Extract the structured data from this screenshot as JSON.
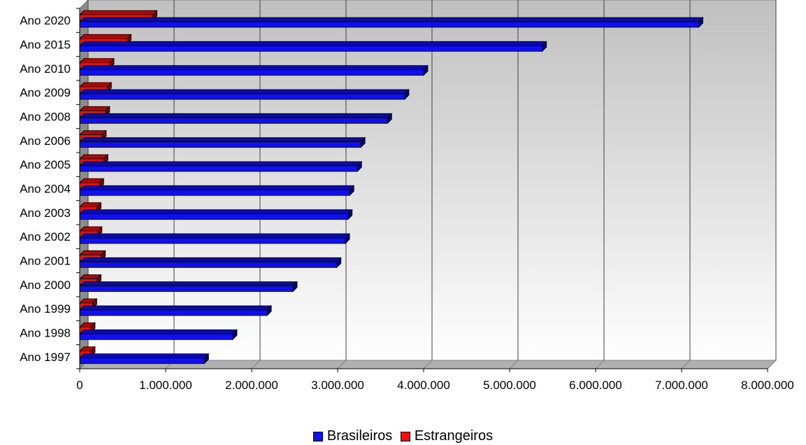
{
  "chart_data": {
    "type": "bar",
    "orientation": "horizontal",
    "categories": [
      "Ano 2020",
      "Ano 2015",
      "Ano 2010",
      "Ano 2009",
      "Ano 2008",
      "Ano 2006",
      "Ano 2005",
      "Ano 2004",
      "Ano 2003",
      "Ano 2002",
      "Ano 2001",
      "Ano 2000",
      "Ano 1999",
      "Ano 1998",
      "Ano 1997"
    ],
    "series": [
      {
        "name": "Brasileiros",
        "color": "#1010ee",
        "values": [
          7200000,
          5380000,
          4000000,
          3780000,
          3580000,
          3270000,
          3230000,
          3140000,
          3120000,
          3090000,
          2990000,
          2480000,
          2180000,
          1780000,
          1450000
        ]
      },
      {
        "name": "Estrangeiros",
        "color": "#ee1010",
        "values": [
          850000,
          550000,
          350000,
          320000,
          300000,
          260000,
          280000,
          230000,
          200000,
          210000,
          250000,
          200000,
          150000,
          130000,
          130000
        ]
      }
    ],
    "xlim": [
      0,
      8000000
    ],
    "x_ticks": [
      "0",
      "1.000.000",
      "2.000.000",
      "3.000.000",
      "4.000.000",
      "5.000.000",
      "6.000.000",
      "7.000.000",
      "8.000.000"
    ],
    "grid": "vertical",
    "legend": "bottom-center",
    "title": "",
    "xlabel": "",
    "ylabel": ""
  }
}
